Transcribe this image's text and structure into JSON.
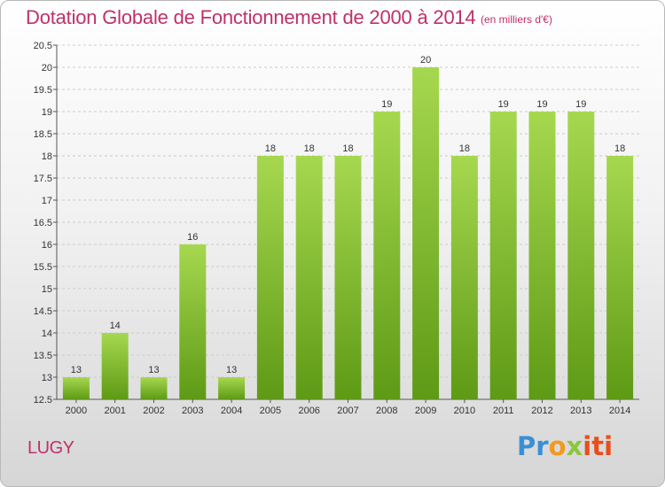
{
  "header": {
    "title": "Dotation Globale de Fonctionnement de 2000 à 2014",
    "subtitle": "(en milliers d'€)"
  },
  "footer": {
    "commune": "LUGY",
    "logo_text": "Proxiti",
    "logo_colors": [
      "#3a8fd6",
      "#f19a1c",
      "#8cc63f",
      "#e84e1b"
    ]
  },
  "colors": {
    "bar_light": "#a6d84f",
    "bar_dark": "#5e9a16",
    "title": "#c0306a",
    "grid": "#cccccc"
  },
  "chart_data": {
    "type": "bar",
    "title": "Dotation Globale de Fonctionnement de 2000 à 2014",
    "subtitle": "(en milliers d'€)",
    "categories": [
      "2000",
      "2001",
      "2002",
      "2003",
      "2004",
      "2005",
      "2006",
      "2007",
      "2008",
      "2009",
      "2010",
      "2011",
      "2012",
      "2013",
      "2014"
    ],
    "values": [
      13,
      14,
      13,
      16,
      13,
      18,
      18,
      18,
      19,
      20,
      18,
      19,
      19,
      19,
      18
    ],
    "ylim": [
      12.5,
      20.5
    ],
    "yticks": [
      12.5,
      13,
      13.5,
      14,
      14.5,
      15,
      15.5,
      16,
      16.5,
      17,
      17.5,
      18,
      18.5,
      19,
      19.5,
      20,
      20.5
    ],
    "grid": true,
    "xlabel": "",
    "ylabel": ""
  }
}
